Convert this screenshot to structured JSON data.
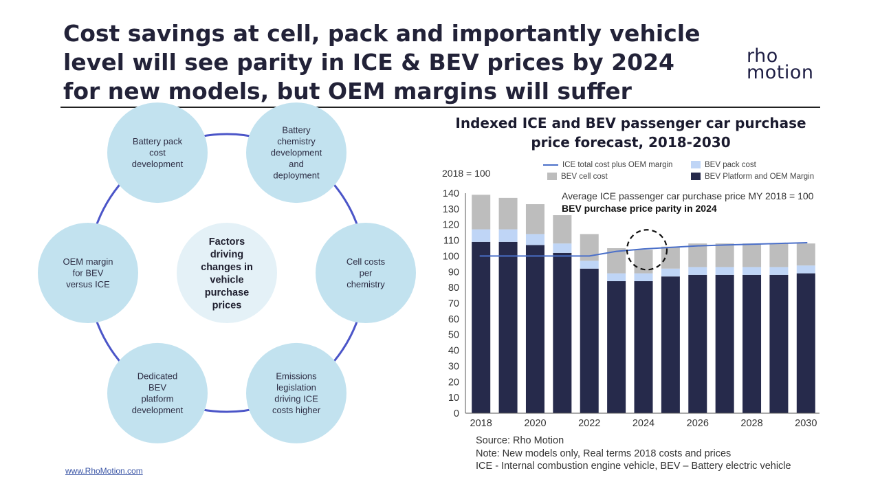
{
  "title": {
    "line1": "Cost savings at cell, pack and importantly vehicle",
    "line2": "level will see parity in ICE & BEV prices by 2024",
    "line3": "for new models, but OEM margins will suffer"
  },
  "logo": {
    "line1": "rho",
    "line2": "motion"
  },
  "diagram": {
    "center": [
      "Factors",
      "driving",
      "changes in",
      "vehicle",
      "purchase",
      "prices"
    ],
    "nodes": [
      [
        "Battery pack",
        "cost",
        "development"
      ],
      [
        "Battery",
        "chemistry",
        "development",
        "and",
        "deployment"
      ],
      [
        "Cell costs",
        "per",
        "chemistry"
      ],
      [
        "Emissions",
        "legislation",
        "driving ICE",
        "costs higher"
      ],
      [
        "Dedicated",
        "BEV",
        "platform",
        "development"
      ],
      [
        "OEM margin",
        "for BEV",
        "versus ICE"
      ]
    ],
    "colors": {
      "circle": "#c2e2ef",
      "center": "#e4f1f7",
      "ring": "#4b55c8"
    }
  },
  "chart_data": {
    "type": "bar",
    "title": "Indexed ICE and BEV passenger car purchase price forecast, 2018-2030",
    "base_note": "2018 = 100",
    "categories": [
      "2018",
      "2019",
      "2020",
      "2021",
      "2022",
      "2023",
      "2024",
      "2025",
      "2026",
      "2027",
      "2028",
      "2029",
      "2030"
    ],
    "x_tick_labels": [
      "2018",
      "",
      "2020",
      "",
      "2022",
      "",
      "2024",
      "",
      "2026",
      "",
      "2028",
      "",
      "2030"
    ],
    "series": [
      {
        "name": "BEV Platform and OEM Margin",
        "kind": "bar",
        "color": "#262a4b",
        "values": [
          109,
          109,
          107,
          102,
          92,
          84,
          84,
          87,
          88,
          88,
          88,
          88,
          89
        ]
      },
      {
        "name": "BEV pack cost",
        "kind": "bar",
        "color": "#bfd5f6",
        "values": [
          8,
          8,
          7,
          6,
          5,
          5,
          5,
          5,
          5,
          5,
          5,
          5,
          5
        ]
      },
      {
        "name": "BEV cell cost",
        "kind": "bar",
        "color": "#bdbdbd",
        "values": [
          22,
          20,
          19,
          18,
          17,
          16,
          15,
          14,
          15,
          15,
          15,
          15,
          14
        ]
      },
      {
        "name": "ICE total cost plus OEM margin",
        "kind": "line",
        "color": "#4a6fc9",
        "values": [
          100,
          100,
          100,
          100,
          100,
          103,
          104.5,
          105.5,
          106.5,
          107,
          107.5,
          108,
          108.5
        ]
      }
    ],
    "legend": [
      {
        "label": "ICE total cost plus OEM margin",
        "kind": "line",
        "color": "#4a6fc9"
      },
      {
        "label": "BEV pack cost",
        "kind": "box",
        "color": "#bfd5f6"
      },
      {
        "label": "BEV cell cost",
        "kind": "box",
        "color": "#bdbdbd"
      },
      {
        "label": "BEV Platform and OEM Margin",
        "kind": "box",
        "color": "#262a4b"
      }
    ],
    "ylim": [
      0,
      140
    ],
    "y_ticks": [
      0,
      10,
      20,
      30,
      40,
      50,
      60,
      70,
      80,
      90,
      100,
      110,
      120,
      130,
      140
    ],
    "grid": false,
    "annotations": [
      "Average ICE passenger car purchase price MY 2018 = 100",
      "BEV purchase price parity in 2024"
    ],
    "highlight_category": "2024"
  },
  "notes": {
    "source": "Source: Rho Motion",
    "note": "Note: New models only, Real terms 2018 costs and prices",
    "abbr": "ICE - Internal combustion engine vehicle, BEV – Battery electric vehicle"
  },
  "footer": {
    "link": "www.RhoMotion.com"
  }
}
